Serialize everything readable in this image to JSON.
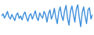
{
  "chart_data": {
    "type": "line",
    "color": "#3d8fdb",
    "tick_labels": false,
    "ylim": [
      0,
      100
    ],
    "values": [
      55,
      62,
      48,
      58,
      70,
      52,
      45,
      60,
      50,
      40,
      58,
      65,
      47,
      55,
      42,
      60,
      68,
      50,
      38,
      57,
      62,
      45,
      58,
      72,
      50,
      40,
      65,
      55,
      48,
      70,
      60,
      35,
      62,
      75,
      45,
      58,
      80,
      50,
      30,
      68,
      85,
      55,
      40,
      72,
      90,
      48,
      25,
      70,
      88,
      60,
      35,
      78,
      92,
      50,
      20,
      65,
      85,
      55,
      30,
      75,
      82,
      45,
      60
    ]
  }
}
